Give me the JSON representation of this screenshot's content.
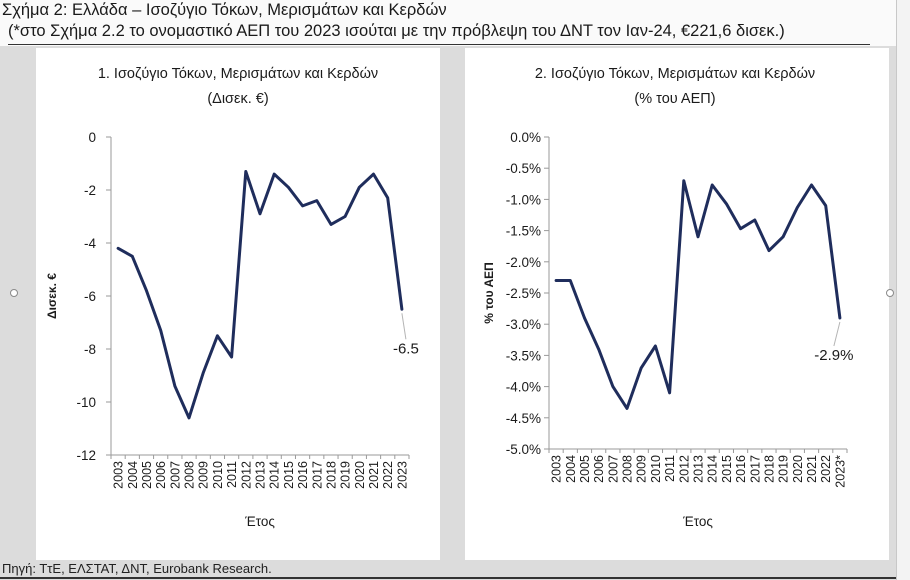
{
  "figure": {
    "title": "Σχήμα 2: Ελλάδα – Ισοζύγιο Τόκων, Μερισμάτων και Κερδών",
    "subtitle": "(*στο Σχήμα 2.2 το ονομαστικό ΑΕΠ του 2023 ισούται με την πρόβλεψη του ΔΝΤ τον Ιαν-24, €221,6 δισεκ.)",
    "source": "Πηγή: ΤτΕ, ΕΛΣΤΑΤ, ΔΝΤ, Eurobank Research."
  },
  "colors": {
    "line": "#1f2d5c",
    "axis": "#9a9a9a",
    "panel": "#ffffff",
    "background": "#dcdcdc"
  },
  "chart_data": [
    {
      "type": "line",
      "title": "1. Ισοζύγιο Τόκων, Μερισμάτων και Κερδών",
      "subtitle": "(Δισεκ. €)",
      "xlabel": "Έτος",
      "ylabel": "Δισεκ. €",
      "ylim": [
        -12,
        0
      ],
      "yticks": [
        0,
        -2,
        -4,
        -6,
        -8,
        -10,
        -12
      ],
      "ytick_labels": [
        "0",
        "-2",
        "-4",
        "-6",
        "-8",
        "-10",
        "-12"
      ],
      "x": [
        "2003",
        "2004",
        "2005",
        "2006",
        "2007",
        "2008",
        "2009",
        "2010",
        "2011",
        "2012",
        "2013",
        "2014",
        "2015",
        "2016",
        "2017",
        "2018",
        "2019",
        "2020",
        "2021",
        "2022",
        "2023"
      ],
      "series": [
        {
          "values": [
            -4.2,
            -4.5,
            -5.8,
            -7.3,
            -9.4,
            -10.6,
            -8.9,
            -7.5,
            -8.3,
            -1.3,
            -2.9,
            -1.4,
            -1.9,
            -2.6,
            -2.4,
            -3.3,
            -3.0,
            -1.9,
            -1.4,
            -2.3,
            -6.5
          ]
        }
      ],
      "annotation": {
        "text": "-6.5",
        "index": 20
      },
      "grid": false
    },
    {
      "type": "line",
      "title": "2. Ισοζύγιο Τόκων, Μερισμάτων και Κερδών",
      "subtitle": "(% του ΑΕΠ)",
      "xlabel": "Έτος",
      "ylabel": "% του ΑΕΠ",
      "ylim": [
        -5.0,
        0.0
      ],
      "yticks": [
        0,
        -0.5,
        -1,
        -1.5,
        -2,
        -2.5,
        -3,
        -3.5,
        -4,
        -4.5,
        -5
      ],
      "ytick_labels": [
        "0.0%",
        "-0.5%",
        "-1.0%",
        "-1.5%",
        "-2.0%",
        "-2.5%",
        "-3.0%",
        "-3.5%",
        "-4.0%",
        "-4.5%",
        "-5.0%"
      ],
      "x": [
        "2003",
        "2004",
        "2005",
        "2006",
        "2007",
        "2008",
        "2009",
        "2010",
        "2011",
        "2012",
        "2013",
        "2014",
        "2015",
        "2016",
        "2017",
        "2018",
        "2019",
        "2020",
        "2021",
        "2022",
        "2023*"
      ],
      "series": [
        {
          "values": [
            -2.3,
            -2.3,
            -2.9,
            -3.4,
            -4.0,
            -4.35,
            -3.7,
            -3.35,
            -4.1,
            -0.7,
            -1.6,
            -0.77,
            -1.07,
            -1.47,
            -1.33,
            -1.82,
            -1.6,
            -1.13,
            -0.77,
            -1.1,
            -2.9
          ]
        }
      ],
      "annotation": {
        "text": "-2.9%",
        "index": 20
      },
      "grid": false
    }
  ]
}
